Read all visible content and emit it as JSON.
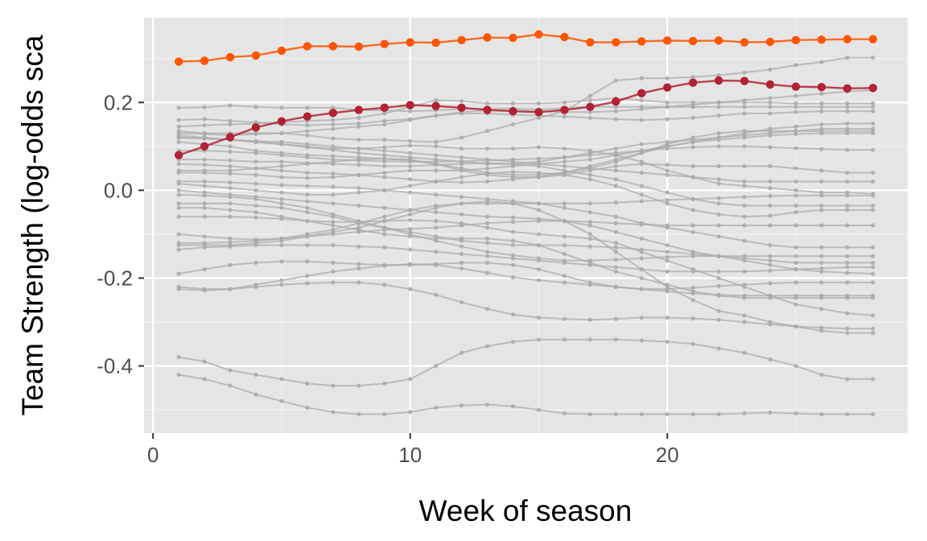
{
  "chart_data": {
    "type": "line",
    "title": "",
    "xlabel": "Week of season",
    "ylabel": "Team Strength (log-odds sca",
    "xlim": [
      -0.35,
      29.35
    ],
    "ylim": [
      -0.553,
      0.393
    ],
    "x_ticks": [
      0,
      10,
      20
    ],
    "x_tick_labels": [
      "0",
      "10",
      "20"
    ],
    "y_ticks": [
      0.2,
      0.0,
      -0.2,
      -0.4
    ],
    "y_tick_labels": [
      "0.2",
      "0.0",
      "-0.2",
      "-0.4"
    ],
    "grid": true,
    "legend": "none",
    "x": [
      1,
      2,
      3,
      4,
      5,
      6,
      7,
      8,
      9,
      10,
      11,
      12,
      13,
      14,
      15,
      16,
      17,
      18,
      19,
      20,
      21,
      22,
      23,
      24,
      25,
      26,
      27,
      28
    ],
    "highlighted_series": [
      {
        "color": "#ff5500",
        "values": [
          0.293,
          0.295,
          0.303,
          0.307,
          0.318,
          0.328,
          0.328,
          0.327,
          0.333,
          0.337,
          0.336,
          0.342,
          0.348,
          0.347,
          0.355,
          0.349,
          0.337,
          0.337,
          0.339,
          0.341,
          0.34,
          0.341,
          0.337,
          0.338,
          0.342,
          0.343,
          0.344,
          0.344
        ]
      },
      {
        "color": "#b22234",
        "values": [
          0.08,
          0.1,
          0.121,
          0.143,
          0.157,
          0.168,
          0.176,
          0.183,
          0.188,
          0.194,
          0.192,
          0.188,
          0.183,
          0.18,
          0.178,
          0.183,
          0.19,
          0.202,
          0.221,
          0.234,
          0.245,
          0.25,
          0.249,
          0.241,
          0.236,
          0.235,
          0.232,
          0.233
        ]
      }
    ],
    "background_series": [
      {
        "color": "#aaaaaa",
        "values": [
          0.188,
          0.189,
          0.193,
          0.19,
          0.188,
          0.188,
          0.188,
          0.183,
          0.182,
          0.18,
          0.182,
          0.185,
          0.186,
          0.186,
          0.184,
          0.187,
          0.19,
          0.19,
          0.19,
          0.19,
          0.19,
          0.19,
          0.19,
          0.19,
          0.19,
          0.19,
          0.19,
          0.19
        ]
      },
      {
        "color": "#aaaaaa",
        "values": [
          0.16,
          0.162,
          0.158,
          0.155,
          0.15,
          0.148,
          0.15,
          0.152,
          0.158,
          0.162,
          0.17,
          0.175,
          0.175,
          0.172,
          0.17,
          0.168,
          0.165,
          0.162,
          0.16,
          0.162,
          0.165,
          0.17,
          0.175,
          0.175,
          0.178,
          0.18,
          0.18,
          0.18
        ]
      },
      {
        "color": "#aaaaaa",
        "values": [
          0.145,
          0.148,
          0.15,
          0.152,
          0.155,
          0.158,
          0.16,
          0.165,
          0.175,
          0.19,
          0.205,
          0.203,
          0.198,
          0.198,
          0.198,
          0.2,
          0.205,
          0.21,
          0.205,
          0.2,
          0.2,
          0.2,
          0.2,
          0.2,
          0.198,
          0.198,
          0.198,
          0.198
        ]
      },
      {
        "color": "#aaaaaa",
        "values": [
          0.135,
          0.13,
          0.13,
          0.13,
          0.13,
          0.125,
          0.118,
          0.115,
          0.115,
          0.112,
          0.11,
          0.12,
          0.135,
          0.15,
          0.165,
          0.18,
          0.215,
          0.25,
          0.255,
          0.255,
          0.258,
          0.262,
          0.268,
          0.275,
          0.285,
          0.292,
          0.302,
          0.302
        ]
      },
      {
        "color": "#aaaaaa",
        "values": [
          0.13,
          0.128,
          0.125,
          0.128,
          0.13,
          0.135,
          0.14,
          0.145,
          0.15,
          0.16,
          0.17,
          0.178,
          0.182,
          0.182,
          0.18,
          0.178,
          0.178,
          0.18,
          0.185,
          0.19,
          0.195,
          0.2,
          0.205,
          0.21,
          0.215,
          0.22,
          0.225,
          0.228
        ]
      },
      {
        "color": "#aaaaaa",
        "values": [
          0.125,
          0.12,
          0.115,
          0.11,
          0.105,
          0.1,
          0.095,
          0.095,
          0.098,
          0.102,
          0.1,
          0.095,
          0.095,
          0.095,
          0.098,
          0.095,
          0.09,
          0.08,
          0.065,
          0.045,
          0.03,
          0.015,
          0.01,
          0.005,
          0.0,
          -0.005,
          -0.005,
          -0.008
        ]
      },
      {
        "color": "#aaaaaa",
        "values": [
          0.12,
          0.118,
          0.115,
          0.11,
          0.105,
          0.098,
          0.092,
          0.085,
          0.08,
          0.075,
          0.07,
          0.065,
          0.06,
          0.06,
          0.065,
          0.075,
          0.085,
          0.095,
          0.105,
          0.11,
          0.115,
          0.12,
          0.125,
          0.13,
          0.135,
          0.14,
          0.14,
          0.14
        ]
      },
      {
        "color": "#aaaaaa",
        "values": [
          0.11,
          0.105,
          0.1,
          0.09,
          0.085,
          0.08,
          0.078,
          0.075,
          0.072,
          0.068,
          0.06,
          0.05,
          0.04,
          0.035,
          0.035,
          0.04,
          0.05,
          0.065,
          0.085,
          0.105,
          0.12,
          0.13,
          0.135,
          0.135,
          0.135,
          0.135,
          0.135,
          0.135
        ]
      },
      {
        "color": "#aaaaaa",
        "values": [
          0.07,
          0.07,
          0.068,
          0.065,
          0.065,
          0.062,
          0.06,
          0.058,
          0.055,
          0.055,
          0.058,
          0.06,
          0.062,
          0.06,
          0.055,
          0.045,
          0.035,
          0.025,
          0.01,
          -0.005,
          -0.02,
          -0.03,
          -0.035,
          -0.035,
          -0.035,
          -0.035,
          -0.035,
          -0.035
        ]
      },
      {
        "color": "#aaaaaa",
        "values": [
          0.045,
          0.045,
          0.045,
          0.05,
          0.055,
          0.06,
          0.065,
          0.07,
          0.072,
          0.07,
          0.06,
          0.045,
          0.035,
          0.03,
          0.03,
          0.035,
          0.045,
          0.055,
          0.06,
          0.058,
          0.055,
          0.055,
          0.055,
          0.055,
          0.05,
          0.045,
          0.04,
          0.04
        ]
      },
      {
        "color": "#aaaaaa",
        "values": [
          0.04,
          0.04,
          0.038,
          0.035,
          0.03,
          0.028,
          0.03,
          0.035,
          0.04,
          0.045,
          0.045,
          0.045,
          0.05,
          0.055,
          0.06,
          0.065,
          0.07,
          0.08,
          0.09,
          0.1,
          0.11,
          0.12,
          0.13,
          0.14,
          0.145,
          0.15,
          0.152,
          0.152
        ]
      },
      {
        "color": "#aaaaaa",
        "values": [
          0.02,
          0.02,
          0.018,
          0.015,
          0.012,
          0.01,
          0.008,
          0.005,
          0.0,
          -0.005,
          -0.01,
          -0.015,
          -0.02,
          -0.025,
          -0.03,
          -0.04,
          -0.05,
          -0.06,
          -0.075,
          -0.085,
          -0.095,
          -0.105,
          -0.115,
          -0.125,
          -0.13,
          -0.13,
          -0.13,
          -0.13
        ]
      },
      {
        "color": "#aaaaaa",
        "values": [
          0.015,
          0.01,
          0.005,
          0.0,
          -0.005,
          -0.01,
          -0.01,
          -0.005,
          0.0,
          0.01,
          0.02,
          0.03,
          0.038,
          0.042,
          0.04,
          0.035,
          0.025,
          0.01,
          -0.01,
          -0.03,
          -0.045,
          -0.055,
          -0.06,
          -0.058,
          -0.05,
          -0.045,
          -0.045,
          -0.045
        ]
      },
      {
        "color": "#aaaaaa",
        "values": [
          -0.03,
          -0.03,
          -0.03,
          -0.035,
          -0.04,
          -0.05,
          -0.06,
          -0.075,
          -0.085,
          -0.095,
          -0.105,
          -0.115,
          -0.12,
          -0.125,
          -0.125,
          -0.125,
          -0.128,
          -0.13,
          -0.135,
          -0.14,
          -0.145,
          -0.15,
          -0.155,
          -0.16,
          -0.165,
          -0.165,
          -0.165,
          -0.165
        ]
      },
      {
        "color": "#aaaaaa",
        "values": [
          -0.04,
          -0.04,
          -0.045,
          -0.05,
          -0.06,
          -0.07,
          -0.08,
          -0.09,
          -0.1,
          -0.105,
          -0.11,
          -0.11,
          -0.11,
          -0.115,
          -0.125,
          -0.145,
          -0.165,
          -0.185,
          -0.2,
          -0.215,
          -0.23,
          -0.24,
          -0.245,
          -0.245,
          -0.245,
          -0.245,
          -0.245,
          -0.245
        ]
      },
      {
        "color": "#aaaaaa",
        "values": [
          -0.06,
          -0.06,
          -0.06,
          -0.062,
          -0.065,
          -0.07,
          -0.072,
          -0.072,
          -0.07,
          -0.068,
          -0.07,
          -0.075,
          -0.085,
          -0.095,
          -0.1,
          -0.105,
          -0.11,
          -0.12,
          -0.14,
          -0.16,
          -0.18,
          -0.2,
          -0.22,
          -0.24,
          -0.26,
          -0.27,
          -0.28,
          -0.285
        ]
      },
      {
        "color": "#aaaaaa",
        "values": [
          -0.1,
          -0.105,
          -0.11,
          -0.112,
          -0.11,
          -0.105,
          -0.1,
          -0.095,
          -0.09,
          -0.088,
          -0.085,
          -0.08,
          -0.075,
          -0.072,
          -0.07,
          -0.07,
          -0.072,
          -0.075,
          -0.078,
          -0.08,
          -0.08,
          -0.08,
          -0.08,
          -0.08,
          -0.08,
          -0.08,
          -0.08,
          -0.08
        ]
      },
      {
        "color": "#aaaaaa",
        "values": [
          -0.12,
          -0.12,
          -0.118,
          -0.115,
          -0.11,
          -0.1,
          -0.09,
          -0.075,
          -0.06,
          -0.045,
          -0.035,
          -0.03,
          -0.03,
          -0.03,
          -0.03,
          -0.03,
          -0.03,
          -0.028,
          -0.025,
          -0.022,
          -0.02,
          -0.018,
          -0.015,
          -0.013,
          -0.012,
          -0.012,
          -0.012,
          -0.012
        ]
      },
      {
        "color": "#aaaaaa",
        "values": [
          -0.125,
          -0.125,
          -0.125,
          -0.12,
          -0.115,
          -0.105,
          -0.095,
          -0.085,
          -0.07,
          -0.055,
          -0.04,
          -0.03,
          -0.025,
          -0.03,
          -0.045,
          -0.07,
          -0.1,
          -0.14,
          -0.18,
          -0.22,
          -0.25,
          -0.275,
          -0.285,
          -0.3,
          -0.31,
          -0.32,
          -0.325,
          -0.325
        ]
      },
      {
        "color": "#aaaaaa",
        "values": [
          -0.135,
          -0.13,
          -0.128,
          -0.125,
          -0.125,
          -0.125,
          -0.125,
          -0.128,
          -0.13,
          -0.135,
          -0.14,
          -0.145,
          -0.15,
          -0.155,
          -0.16,
          -0.165,
          -0.17,
          -0.175,
          -0.18,
          -0.185,
          -0.185,
          -0.185,
          -0.185,
          -0.183,
          -0.18,
          -0.178,
          -0.175,
          -0.175
        ]
      },
      {
        "color": "#aaaaaa",
        "values": [
          -0.19,
          -0.18,
          -0.17,
          -0.165,
          -0.162,
          -0.162,
          -0.165,
          -0.168,
          -0.17,
          -0.17,
          -0.168,
          -0.165,
          -0.165,
          -0.17,
          -0.18,
          -0.195,
          -0.21,
          -0.22,
          -0.225,
          -0.225,
          -0.222,
          -0.218,
          -0.215,
          -0.212,
          -0.21,
          -0.21,
          -0.21,
          -0.21
        ]
      },
      {
        "color": "#aaaaaa",
        "values": [
          -0.22,
          -0.225,
          -0.225,
          -0.215,
          -0.205,
          -0.195,
          -0.185,
          -0.178,
          -0.172,
          -0.168,
          -0.17,
          -0.178,
          -0.188,
          -0.198,
          -0.205,
          -0.21,
          -0.215,
          -0.22,
          -0.225,
          -0.23,
          -0.235,
          -0.238,
          -0.24,
          -0.24,
          -0.24,
          -0.24,
          -0.24,
          -0.24
        ]
      },
      {
        "color": "#aaaaaa",
        "values": [
          -0.225,
          -0.228,
          -0.225,
          -0.22,
          -0.215,
          -0.212,
          -0.21,
          -0.21,
          -0.215,
          -0.225,
          -0.238,
          -0.255,
          -0.27,
          -0.283,
          -0.29,
          -0.293,
          -0.295,
          -0.293,
          -0.29,
          -0.29,
          -0.292,
          -0.295,
          -0.3,
          -0.305,
          -0.31,
          -0.313,
          -0.315,
          -0.315
        ]
      },
      {
        "color": "#aaaaaa",
        "values": [
          -0.38,
          -0.39,
          -0.41,
          -0.42,
          -0.43,
          -0.44,
          -0.445,
          -0.445,
          -0.44,
          -0.43,
          -0.4,
          -0.37,
          -0.355,
          -0.345,
          -0.34,
          -0.34,
          -0.34,
          -0.34,
          -0.342,
          -0.345,
          -0.35,
          -0.36,
          -0.37,
          -0.385,
          -0.4,
          -0.42,
          -0.43,
          -0.43
        ]
      },
      {
        "color": "#aaaaaa",
        "values": [
          -0.42,
          -0.43,
          -0.445,
          -0.465,
          -0.48,
          -0.495,
          -0.505,
          -0.51,
          -0.51,
          -0.505,
          -0.495,
          -0.49,
          -0.488,
          -0.492,
          -0.5,
          -0.508,
          -0.51,
          -0.51,
          -0.51,
          -0.51,
          -0.51,
          -0.51,
          -0.508,
          -0.506,
          -0.508,
          -0.51,
          -0.51,
          -0.51
        ]
      },
      {
        "color": "#aaaaaa",
        "values": [
          0.12,
          0.118,
          0.115,
          0.112,
          0.11,
          0.105,
          0.1,
          0.095,
          0.09,
          0.085,
          0.08,
          0.075,
          0.07,
          0.065,
          0.06,
          0.055,
          0.05,
          0.045,
          0.04,
          0.035,
          0.03,
          0.025,
          0.02,
          0.02,
          0.02,
          0.02,
          0.02,
          0.02
        ]
      },
      {
        "color": "#aaaaaa",
        "values": [
          0.06,
          0.058,
          0.055,
          0.05,
          0.045,
          0.04,
          0.038,
          0.035,
          0.03,
          0.025,
          0.02,
          0.018,
          0.02,
          0.025,
          0.03,
          0.04,
          0.055,
          0.07,
          0.085,
          0.1,
          0.11,
          0.115,
          0.12,
          0.125,
          0.128,
          0.13,
          0.13,
          0.13
        ]
      },
      {
        "color": "#aaaaaa",
        "values": [
          -0.01,
          -0.012,
          -0.015,
          -0.02,
          -0.03,
          -0.04,
          -0.055,
          -0.07,
          -0.085,
          -0.1,
          -0.115,
          -0.128,
          -0.14,
          -0.148,
          -0.155,
          -0.16,
          -0.16,
          -0.158,
          -0.155,
          -0.152,
          -0.15,
          -0.15,
          -0.15,
          -0.15,
          -0.15,
          -0.15,
          -0.15,
          -0.15
        ]
      },
      {
        "color": "#aaaaaa",
        "values": [
          0.0,
          -0.005,
          -0.01,
          -0.015,
          -0.02,
          -0.025,
          -0.03,
          -0.035,
          -0.04,
          -0.045,
          -0.05,
          -0.055,
          -0.06,
          -0.062,
          -0.065,
          -0.07,
          -0.08,
          -0.095,
          -0.11,
          -0.125,
          -0.14,
          -0.15,
          -0.16,
          -0.17,
          -0.18,
          -0.185,
          -0.188,
          -0.19
        ]
      },
      {
        "color": "#aaaaaa",
        "values": [
          0.09,
          0.09,
          0.088,
          0.085,
          0.08,
          0.075,
          0.07,
          0.068,
          0.066,
          0.065,
          0.065,
          0.066,
          0.068,
          0.07,
          0.072,
          0.075,
          0.08,
          0.085,
          0.09,
          0.095,
          0.098,
          0.1,
          0.1,
          0.098,
          0.096,
          0.094,
          0.092,
          0.092
        ]
      }
    ]
  }
}
